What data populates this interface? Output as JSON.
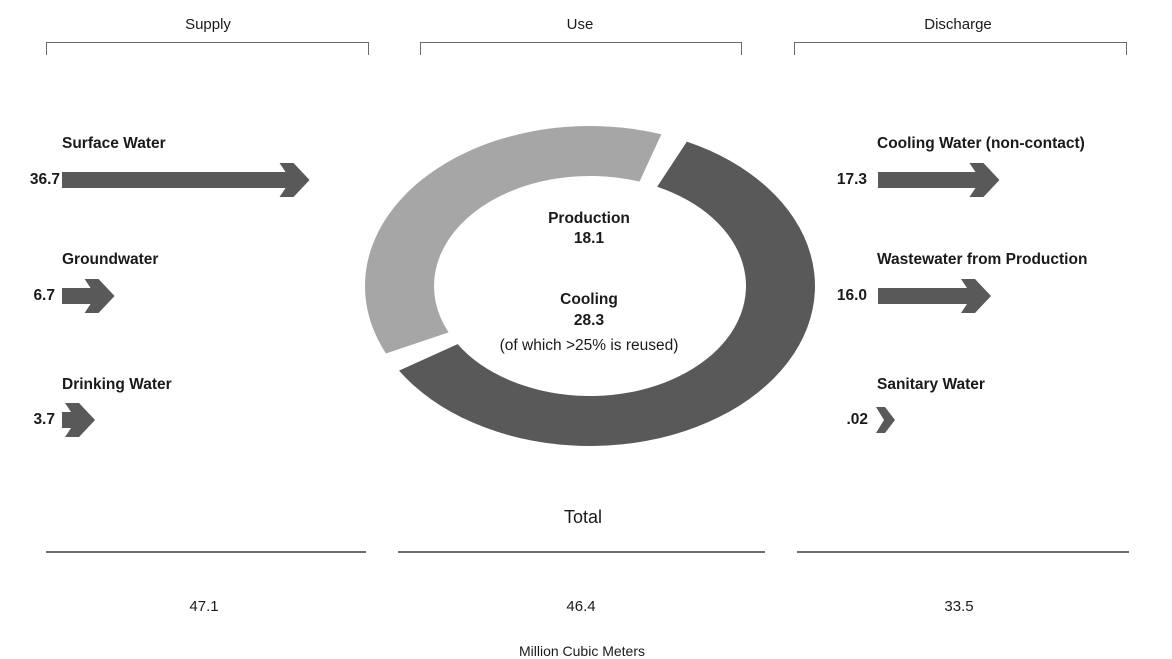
{
  "columns": {
    "supply": "Supply",
    "use": "Use",
    "discharge": "Discharge"
  },
  "supply": [
    {
      "label": "Surface Water",
      "value": "36.7",
      "amount": 36.7
    },
    {
      "label": "Groundwater",
      "value": "6.7",
      "amount": 6.7
    },
    {
      "label": "Drinking Water",
      "value": "3.7",
      "amount": 3.7
    }
  ],
  "discharge": [
    {
      "label": "Cooling Water (non-contact)",
      "value": "17.3",
      "amount": 17.3
    },
    {
      "label": "Wastewater from Production",
      "value": "16.0",
      "amount": 16.0
    },
    {
      "label": "Sanitary Water",
      "value": ".02",
      "amount": 0.02
    }
  ],
  "use": {
    "production": {
      "label": "Production",
      "value": "18.1",
      "amount": 18.1,
      "color": "#a6a6a6"
    },
    "cooling": {
      "label": "Cooling",
      "value": "28.3",
      "amount": 28.3,
      "note": "(of which >25% is reused)",
      "color": "#595959"
    }
  },
  "totals": {
    "label": "Total",
    "supply": "47.1",
    "use": "46.4",
    "discharge": "33.5"
  },
  "units": "Million Cubic Meters",
  "colors": {
    "arrow": "#595959",
    "ring_dark": "#595959",
    "ring_light": "#a6a6a6"
  }
}
